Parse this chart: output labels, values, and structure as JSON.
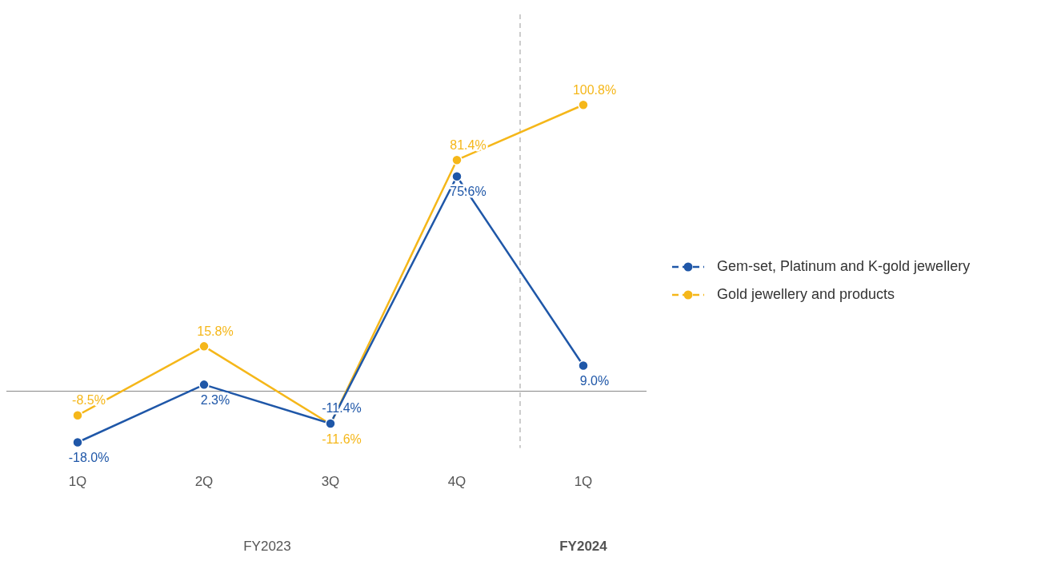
{
  "chart_data": {
    "type": "line",
    "categories": [
      "1Q",
      "2Q",
      "3Q",
      "4Q",
      "1Q"
    ],
    "series": [
      {
        "name": "Gem-set, Platinum and K-gold jewellery",
        "color": "#1f57a8",
        "values": [
          -18.0,
          2.3,
          -11.4,
          75.6,
          9.0
        ],
        "value_labels": [
          "-18.0%",
          "2.3%",
          "-11.4%",
          "75.6%",
          "9.0%"
        ]
      },
      {
        "name": "Gold jewellery and products",
        "color": "#f5b71a",
        "values": [
          -8.5,
          15.8,
          -11.6,
          81.4,
          100.8
        ],
        "value_labels": [
          "-8.5%",
          "15.8%",
          "-11.6%",
          "81.4%",
          "100.8%"
        ]
      }
    ],
    "annotations": [
      "FY2023",
      "FY2024"
    ],
    "marker": "circle",
    "line_style": "solid",
    "legend": "right",
    "grid": false
  }
}
